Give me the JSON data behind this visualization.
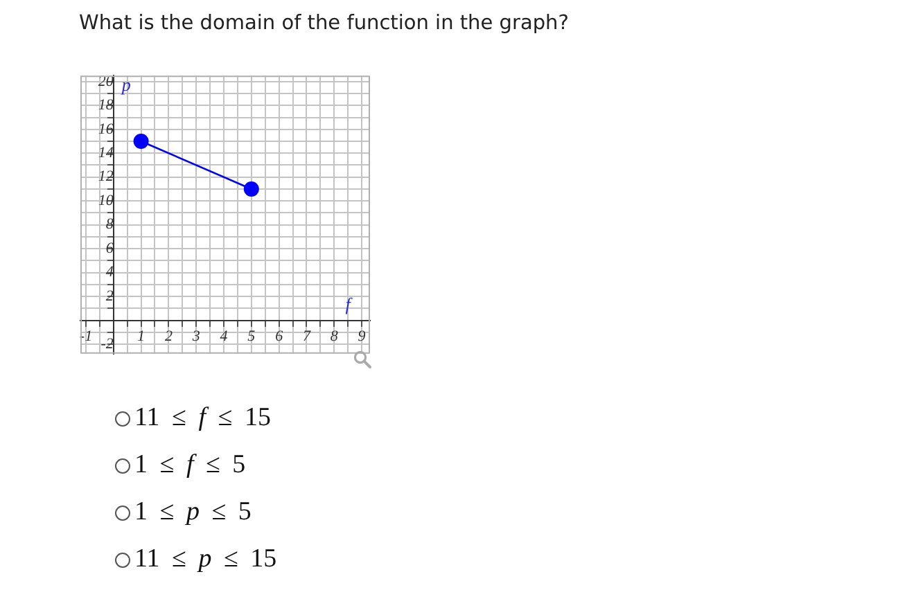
{
  "chart_data": {
    "type": "line",
    "title": "What is the domain of the function in the graph?",
    "xlabel": "f",
    "ylabel": "p",
    "x": [
      1,
      5
    ],
    "values": [
      15,
      11
    ],
    "color": "#0000ff",
    "marker": "circle",
    "xlim": [
      -1.2,
      9.3
    ],
    "ylim": [
      -2.8,
      20.5
    ],
    "xticks": [
      -1,
      {
        "value": -0.5,
        "label": null
      },
      {
        "value": 0,
        "label": null
      },
      {
        "value": 0.5,
        "label": null
      },
      1,
      {
        "value": 1.5,
        "label": null
      },
      2,
      {
        "value": 2.5,
        "label": null
      },
      3,
      {
        "value": 3.5,
        "label": null
      },
      4,
      {
        "value": 4.5,
        "label": null
      },
      5,
      {
        "value": 5.5,
        "label": null
      },
      6,
      {
        "value": 6.5,
        "label": null
      },
      7,
      {
        "value": 7.5,
        "label": null
      },
      8,
      {
        "value": 8.5,
        "label": null
      },
      9
    ],
    "yticks": [
      -2,
      {
        "value": -1,
        "label": null
      },
      {
        "value": 0,
        "label": null
      },
      {
        "value": 1,
        "label": null
      },
      2,
      {
        "value": 3,
        "label": null
      },
      4,
      {
        "value": 5,
        "label": null
      },
      6,
      {
        "value": 7,
        "label": null
      },
      8,
      {
        "value": 9,
        "label": null
      },
      10,
      {
        "value": 11,
        "label": null
      },
      12,
      {
        "value": 13,
        "label": null
      },
      14,
      {
        "value": 15,
        "label": null
      },
      16,
      {
        "value": 17,
        "label": null
      },
      18,
      {
        "value": 19,
        "label": null
      },
      20
    ],
    "grid": true,
    "annotations": [
      "11 ≤ f ≤ 15",
      "1 ≤ f ≤ 5",
      "1 ≤ p ≤ 5",
      "11 ≤ p ≤ 15"
    ]
  }
}
